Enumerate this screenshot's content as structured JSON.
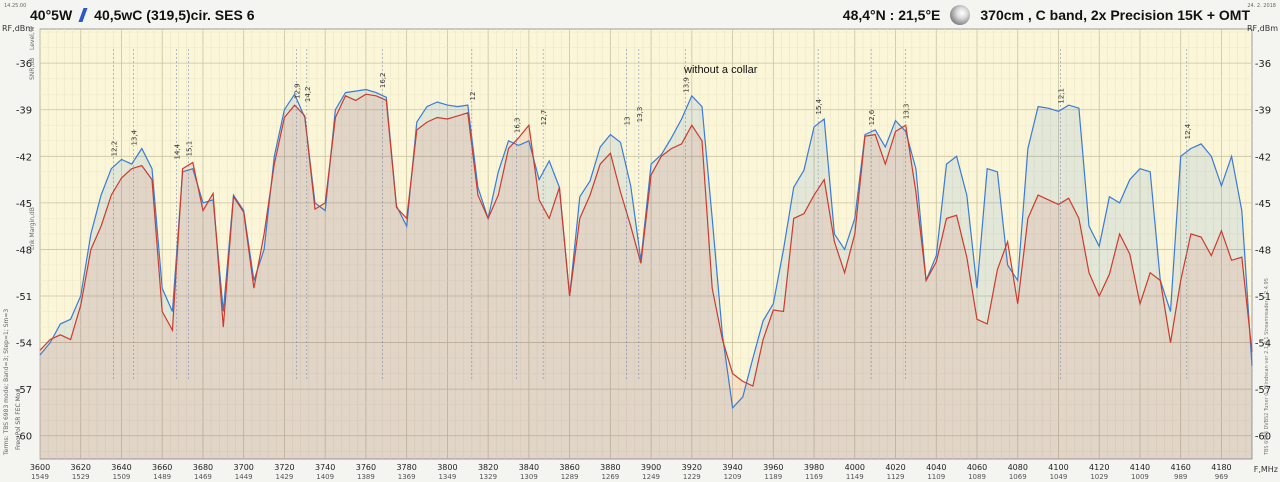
{
  "header": {
    "sat_pos": "40°5W",
    "sat_name": "40,5wC (319,5)cir. SES 6",
    "location": "48,4°N : 21,5°E",
    "setup": "370cm , C band, 2x Precision 15K + OMT"
  },
  "annotation": "without a collar",
  "side_labels": {
    "top_left": "14.25.00",
    "top_right": "24. 2. 2018",
    "y_left_1": "RF,dBm",
    "y_left_2": "Level,%",
    "y_left_3": "SNR,dB",
    "y_left_4": "Lnk Margin,dB",
    "y_right": "RF,dBm",
    "bottom_left_1": "Terms: TBS 6983 mode; Band=3; Step=1; Sm=3",
    "bottom_left_2": "Freq  Pol  SR  FEC  Mod",
    "right_vertical": "TBS 6983 DVBS2 Tuner 0,  Blindscan ver 2.1.0.1  Streamreader 1.2.4.95",
    "x_unit": "F,MHz"
  },
  "chart_data": {
    "type": "line",
    "title": "",
    "xlabel": "F,MHz",
    "ylabel": "RF,dBm",
    "xlim": [
      3600,
      4195
    ],
    "ylim": [
      -61.5,
      -33.8
    ],
    "y_ticks": [
      -36,
      -39,
      -42,
      -45,
      -48,
      -51,
      -54,
      -57,
      -60
    ],
    "x_ticks": [
      3600,
      3620,
      3640,
      3660,
      3680,
      3700,
      3720,
      3740,
      3760,
      3780,
      3800,
      3820,
      3840,
      3860,
      3880,
      3900,
      3920,
      3940,
      3960,
      3980,
      4000,
      4020,
      4040,
      4060,
      4080,
      4100,
      4120,
      4140,
      4160,
      4180
    ],
    "if_ticks": [
      1549,
      1529,
      1509,
      1489,
      1469,
      1449,
      1429,
      1409,
      1389,
      1369,
      1349,
      1329,
      1309,
      1289,
      1269,
      1249,
      1229,
      1209,
      1189,
      1169,
      1149,
      1129,
      1109,
      1089,
      1069,
      1049,
      1029,
      1009,
      989,
      969
    ],
    "grid": true,
    "series": [
      {
        "name": "",
        "color": "#3a7bd5",
        "x": [
          3600,
          3605,
          3610,
          3615,
          3620,
          3625,
          3630,
          3635,
          3640,
          3645,
          3650,
          3655,
          3660,
          3665,
          3670,
          3675,
          3680,
          3685,
          3690,
          3695,
          3700,
          3705,
          3710,
          3715,
          3720,
          3725,
          3730,
          3735,
          3740,
          3745,
          3750,
          3755,
          3760,
          3765,
          3770,
          3775,
          3780,
          3785,
          3790,
          3795,
          3800,
          3805,
          3810,
          3815,
          3820,
          3825,
          3830,
          3835,
          3840,
          3845,
          3850,
          3855,
          3860,
          3865,
          3870,
          3875,
          3880,
          3885,
          3890,
          3895,
          3900,
          3905,
          3910,
          3915,
          3920,
          3925,
          3930,
          3935,
          3940,
          3945,
          3950,
          3955,
          3960,
          3965,
          3970,
          3975,
          3980,
          3985,
          3990,
          3995,
          4000,
          4005,
          4010,
          4015,
          4020,
          4025,
          4030,
          4035,
          4040,
          4045,
          4050,
          4055,
          4060,
          4065,
          4070,
          4075,
          4080,
          4085,
          4090,
          4095,
          4100,
          4105,
          4110,
          4115,
          4120,
          4125,
          4130,
          4135,
          4140,
          4145,
          4150,
          4155,
          4160,
          4165,
          4170,
          4175,
          4180,
          4185,
          4190,
          4195
        ],
        "y": [
          -54.8,
          -54.0,
          -52.8,
          -52.5,
          -51.0,
          -47.0,
          -44.5,
          -42.8,
          -42.2,
          -42.5,
          -41.5,
          -42.8,
          -50.5,
          -52.0,
          -43.0,
          -42.8,
          -45.0,
          -44.8,
          -52.0,
          -44.5,
          -45.5,
          -50.0,
          -48.0,
          -42.0,
          -39.0,
          -38.0,
          -39.5,
          -45.0,
          -45.5,
          -39.0,
          -37.9,
          -37.8,
          -37.7,
          -37.9,
          -38.2,
          -45.2,
          -46.5,
          -39.8,
          -38.8,
          -38.5,
          -38.7,
          -38.8,
          -38.7,
          -44.0,
          -46.0,
          -43.0,
          -41.0,
          -41.3,
          -41.0,
          -43.5,
          -42.3,
          -44.0,
          -51.0,
          -44.6,
          -43.6,
          -41.4,
          -40.6,
          -41.1,
          -43.9,
          -48.7,
          -42.5,
          -41.9,
          -40.8,
          -39.6,
          -38.1,
          -38.8,
          -46.0,
          -53.5,
          -58.2,
          -57.5,
          -55.0,
          -52.6,
          -51.5,
          -48.0,
          -44.0,
          -42.9,
          -40.1,
          -39.6,
          -47.0,
          -48.0,
          -46.0,
          -40.6,
          -40.3,
          -41.4,
          -39.7,
          -40.4,
          -42.8,
          -50.0,
          -48.4,
          -42.5,
          -42.0,
          -44.5,
          -50.5,
          -42.8,
          -43.0,
          -49.0,
          -50.0,
          -41.5,
          -38.8,
          -38.9,
          -39.1,
          -38.7,
          -38.9,
          -46.5,
          -47.8,
          -44.6,
          -45.0,
          -43.5,
          -42.8,
          -43.0,
          -50.0,
          -52.0,
          -42.0,
          -41.5,
          -41.2,
          -42.0,
          -43.9,
          -42.0,
          -45.5,
          -55.5
        ]
      },
      {
        "name": "",
        "color": "#cc3b2e",
        "x": [
          3600,
          3605,
          3610,
          3615,
          3620,
          3625,
          3630,
          3635,
          3640,
          3645,
          3650,
          3655,
          3660,
          3665,
          3670,
          3675,
          3680,
          3685,
          3690,
          3695,
          3700,
          3705,
          3710,
          3715,
          3720,
          3725,
          3730,
          3735,
          3740,
          3745,
          3750,
          3755,
          3760,
          3765,
          3770,
          3775,
          3780,
          3785,
          3790,
          3795,
          3800,
          3805,
          3810,
          3815,
          3820,
          3825,
          3830,
          3835,
          3840,
          3845,
          3850,
          3855,
          3860,
          3865,
          3870,
          3875,
          3880,
          3885,
          3890,
          3895,
          3900,
          3905,
          3910,
          3915,
          3920,
          3925,
          3930,
          3935,
          3940,
          3945,
          3950,
          3955,
          3960,
          3965,
          3970,
          3975,
          3980,
          3985,
          3990,
          3995,
          4000,
          4005,
          4010,
          4015,
          4020,
          4025,
          4030,
          4035,
          4040,
          4045,
          4050,
          4055,
          4060,
          4065,
          4070,
          4075,
          4080,
          4085,
          4090,
          4095,
          4100,
          4105,
          4110,
          4115,
          4120,
          4125,
          4130,
          4135,
          4140,
          4145,
          4150,
          4155,
          4160,
          4165,
          4170,
          4175,
          4180,
          4185,
          4190,
          4195
        ],
        "y": [
          -54.5,
          -53.8,
          -53.5,
          -53.8,
          -51.6,
          -48.0,
          -46.5,
          -44.5,
          -43.4,
          -42.8,
          -42.6,
          -43.5,
          -52.0,
          -53.2,
          -42.8,
          -42.4,
          -45.5,
          -44.4,
          -53.0,
          -44.6,
          -45.6,
          -50.5,
          -47.0,
          -42.5,
          -39.5,
          -38.7,
          -39.4,
          -45.4,
          -45.0,
          -39.5,
          -38.1,
          -38.4,
          -38.0,
          -38.1,
          -38.4,
          -45.3,
          -46.0,
          -40.3,
          -39.8,
          -39.5,
          -39.6,
          -39.4,
          -39.2,
          -44.5,
          -46.0,
          -44.5,
          -41.5,
          -40.8,
          -40.0,
          -44.8,
          -46.0,
          -44.0,
          -51.0,
          -46.0,
          -44.5,
          -42.5,
          -41.8,
          -44.3,
          -46.5,
          -48.9,
          -43.2,
          -42.0,
          -41.5,
          -41.2,
          -40.0,
          -41.0,
          -50.5,
          -53.8,
          -56.0,
          -56.5,
          -56.8,
          -53.8,
          -51.9,
          -52.0,
          -46.0,
          -45.7,
          -44.5,
          -43.5,
          -47.5,
          -49.5,
          -47.0,
          -40.7,
          -40.6,
          -42.5,
          -40.4,
          -40.0,
          -44.3,
          -50.0,
          -48.8,
          -46.0,
          -45.8,
          -48.5,
          -52.5,
          -52.8,
          -49.3,
          -47.5,
          -51.5,
          -46.0,
          -44.5,
          -44.8,
          -45.1,
          -44.7,
          -46.0,
          -49.5,
          -51.0,
          -49.6,
          -47.0,
          -48.3,
          -51.5,
          -49.5,
          -50.0,
          -54.0,
          -50.0,
          -47.0,
          -47.2,
          -48.4,
          -46.8,
          -48.7,
          -48.5,
          -54.6
        ]
      }
    ],
    "transponder_peaks": [
      {
        "x": 3636,
        "y": -42.2,
        "label": "12,2"
      },
      {
        "x": 3646,
        "y": -41.5,
        "label": "13,4"
      },
      {
        "x": 3667,
        "y": -42.4,
        "label": "14,4"
      },
      {
        "x": 3673,
        "y": -42.2,
        "label": "15,1"
      },
      {
        "x": 3726,
        "y": -38.5,
        "label": "12,9"
      },
      {
        "x": 3731,
        "y": -38.7,
        "label": "14,2"
      },
      {
        "x": 3768,
        "y": -37.8,
        "label": "16,2"
      },
      {
        "x": 3812,
        "y": -38.6,
        "label": "12"
      },
      {
        "x": 3834,
        "y": -40.7,
        "label": "16,3"
      },
      {
        "x": 3847,
        "y": -40.2,
        "label": "12,7"
      },
      {
        "x": 3888,
        "y": -40.2,
        "label": "13"
      },
      {
        "x": 3894,
        "y": -40.0,
        "label": "13,3"
      },
      {
        "x": 3917,
        "y": -38.1,
        "label": "13,9"
      },
      {
        "x": 3982,
        "y": -39.5,
        "label": "15,4"
      },
      {
        "x": 4008,
        "y": -40.2,
        "label": "12,6"
      },
      {
        "x": 4025,
        "y": -39.8,
        "label": "13,3"
      },
      {
        "x": 4101,
        "y": -38.8,
        "label": "12,1"
      },
      {
        "x": 4163,
        "y": -41.1,
        "label": "12,4"
      }
    ]
  }
}
